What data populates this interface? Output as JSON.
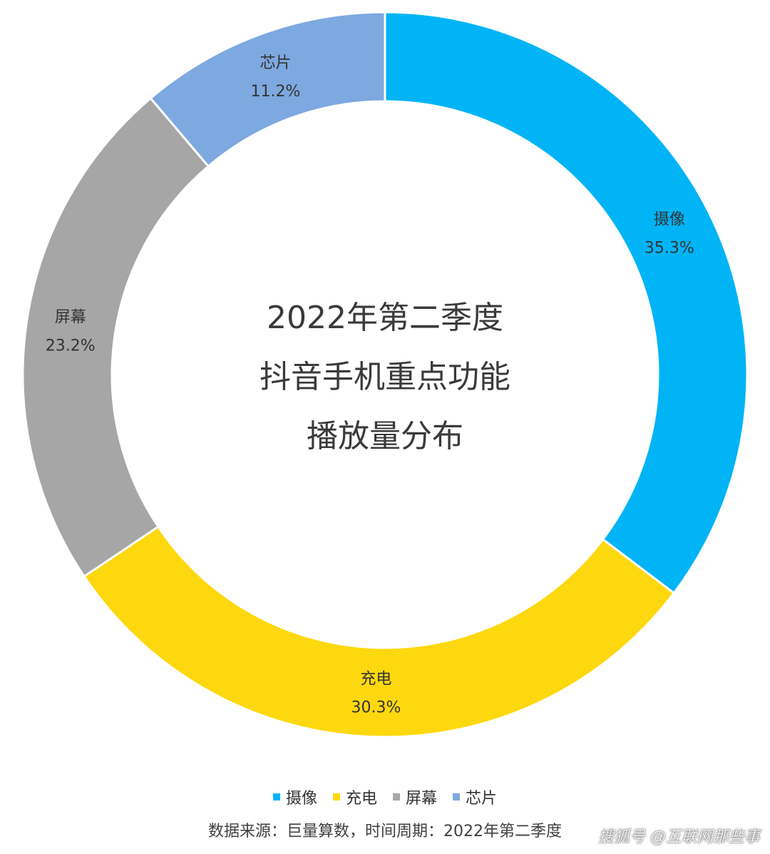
{
  "chart_data": {
    "type": "pie",
    "variant": "donut",
    "title_lines": [
      "2022年第二季度",
      "抖音手机重点功能",
      "播放量分布"
    ],
    "categories": [
      "摄像",
      "充电",
      "屏幕",
      "芯片"
    ],
    "values": [
      35.3,
      30.3,
      23.2,
      11.2
    ],
    "value_labels": [
      "35.3%",
      "30.3%",
      "23.2%",
      "11.2%"
    ],
    "colors": [
      "#00B4F6",
      "#FED80E",
      "#A6A6A6",
      "#7EA8E0"
    ],
    "start": "12 o'clock",
    "direction": "clockwise",
    "legend_placement": "bottom",
    "legend": [
      "摄像",
      "充电",
      "屏幕",
      "芯片"
    ]
  },
  "footer": {
    "source_note": "数据来源：巨量算数，时间周期：2022年第二季度",
    "watermark": "搜狐号 @互联网那些事"
  }
}
